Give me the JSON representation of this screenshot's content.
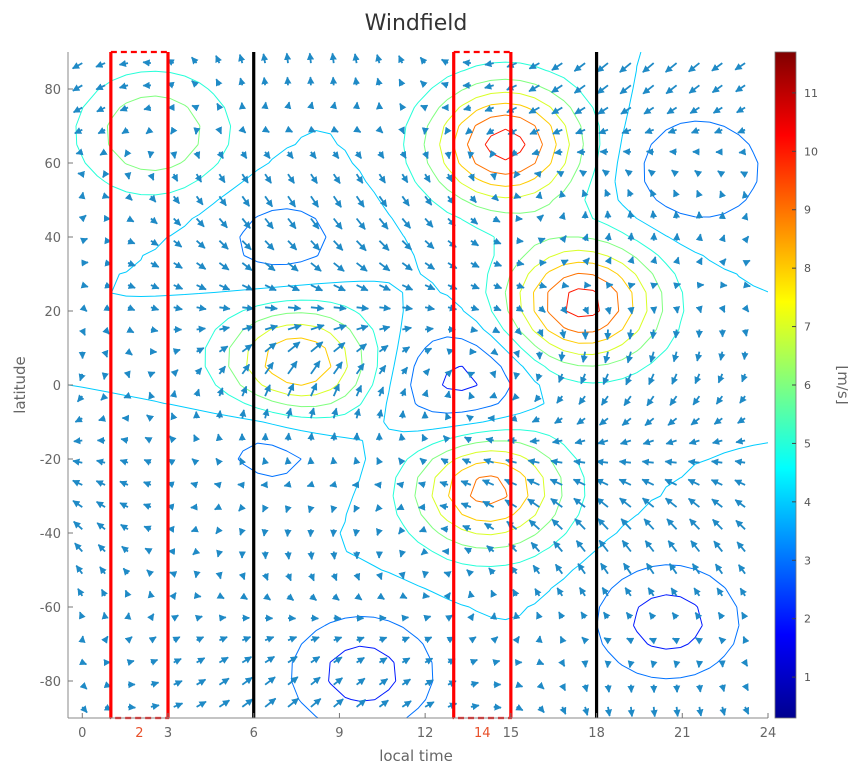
{
  "chart_data": {
    "type": "contour",
    "title": "Windfield",
    "xlabel": "local time",
    "ylabel": "latitude",
    "xlim": [
      -0.5,
      24
    ],
    "ylim": [
      -90,
      90
    ],
    "x_ticks": [
      0,
      3,
      6,
      9,
      12,
      15,
      18,
      21,
      24
    ],
    "y_ticks": [
      80,
      60,
      40,
      20,
      0,
      -20,
      -40,
      -60,
      -80
    ],
    "y_tick_labels": [
      "80",
      "60",
      "40",
      "20",
      "0",
      "-20",
      "-40",
      "-60",
      "-80"
    ],
    "highlighted_ticks": [
      {
        "value": 2,
        "label": "2"
      },
      {
        "value": 14,
        "label": "14"
      }
    ],
    "vertical_lines": [
      {
        "x": 1,
        "color": "#ff0000"
      },
      {
        "x": 3,
        "color": "#ff0000"
      },
      {
        "x": 6,
        "color": "#000000"
      },
      {
        "x": 13,
        "color": "#ff0000"
      },
      {
        "x": 15,
        "color": "#ff0000"
      },
      {
        "x": 18,
        "color": "#000000"
      }
    ],
    "dashed_boxes": [
      [
        1,
        3
      ],
      [
        13,
        15
      ]
    ],
    "colorbar": {
      "label": "[m/s]",
      "range": [
        0.3,
        11.7
      ],
      "ticks": [
        1,
        2,
        3,
        4,
        5,
        6,
        7,
        8,
        9,
        10,
        11
      ],
      "tick_labels": [
        "1",
        "2",
        "3",
        "4",
        "5",
        "6",
        "7",
        "8",
        "9",
        "10",
        "11"
      ],
      "colormap": "jet"
    },
    "wind_speed_centers": [
      {
        "x": 7.5,
        "y": 5,
        "speed": 9.5
      },
      {
        "x": 14.8,
        "y": 65,
        "speed": 10.5
      },
      {
        "x": 17.5,
        "y": 22,
        "speed": 10.5
      },
      {
        "x": 14.2,
        "y": -28,
        "speed": 9.5
      },
      {
        "x": 2.5,
        "y": 68,
        "speed": 7
      },
      {
        "x": 7,
        "y": 38,
        "speed": 2.5
      },
      {
        "x": 21.5,
        "y": 58,
        "speed": 2
      },
      {
        "x": 13.3,
        "y": 0,
        "speed": 1.5
      },
      {
        "x": 20.5,
        "y": -64,
        "speed": 1.5
      },
      {
        "x": 6.8,
        "y": -13,
        "speed": 2
      },
      {
        "x": 9.8,
        "y": -78,
        "speed": 1.5
      }
    ],
    "contour_levels": [
      1,
      2,
      3,
      4,
      5,
      6,
      7,
      8,
      9,
      10,
      11
    ]
  }
}
